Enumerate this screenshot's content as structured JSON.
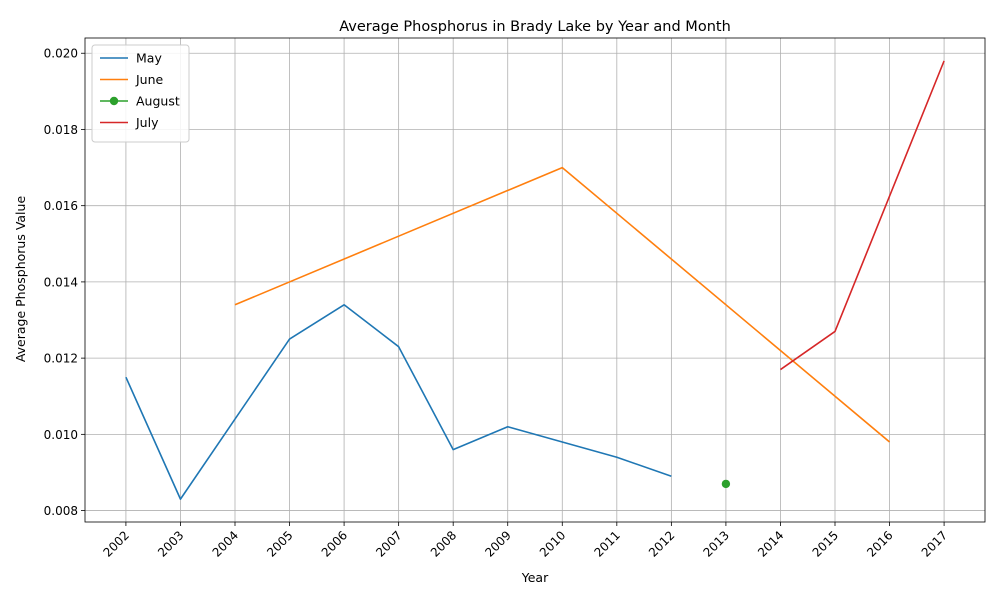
{
  "chart_data": {
    "type": "line",
    "title": "Average Phosphorus in Brady Lake by Year and Month",
    "xlabel": "Year",
    "ylabel": "Average Phosphorus Value",
    "categories": [
      "2002",
      "2003",
      "2004",
      "2005",
      "2006",
      "2007",
      "2008",
      "2009",
      "2010",
      "2011",
      "2012",
      "2013",
      "2014",
      "2015",
      "2016",
      "2017"
    ],
    "ylim": [
      0.0077,
      0.0204
    ],
    "yticks": [
      "0.008",
      "0.010",
      "0.012",
      "0.014",
      "0.016",
      "0.018",
      "0.020"
    ],
    "grid": true,
    "legend_position": "top-left",
    "series": [
      {
        "name": "May",
        "color": "#1f77b4",
        "marker": false,
        "points": [
          [
            2002,
            0.0115
          ],
          [
            2003,
            0.0083
          ],
          [
            2004,
            0.0104
          ],
          [
            2005,
            0.0125
          ],
          [
            2006,
            0.0134
          ],
          [
            2007,
            0.0123
          ],
          [
            2008,
            0.0096
          ],
          [
            2009,
            0.0102
          ],
          [
            2010,
            0.0098
          ],
          [
            2011,
            0.0094
          ],
          [
            2012,
            0.0089
          ]
        ]
      },
      {
        "name": "June",
        "color": "#ff7f0e",
        "marker": false,
        "points": [
          [
            2004,
            0.0134
          ],
          [
            2010,
            0.017
          ],
          [
            2016,
            0.0098
          ]
        ]
      },
      {
        "name": "August",
        "color": "#2ca02c",
        "marker": true,
        "points": [
          [
            2013,
            0.0087
          ]
        ]
      },
      {
        "name": "July",
        "color": "#d62728",
        "marker": false,
        "points": [
          [
            2014,
            0.0117
          ],
          [
            2015,
            0.0127
          ],
          [
            2017,
            0.0198
          ]
        ]
      }
    ]
  }
}
